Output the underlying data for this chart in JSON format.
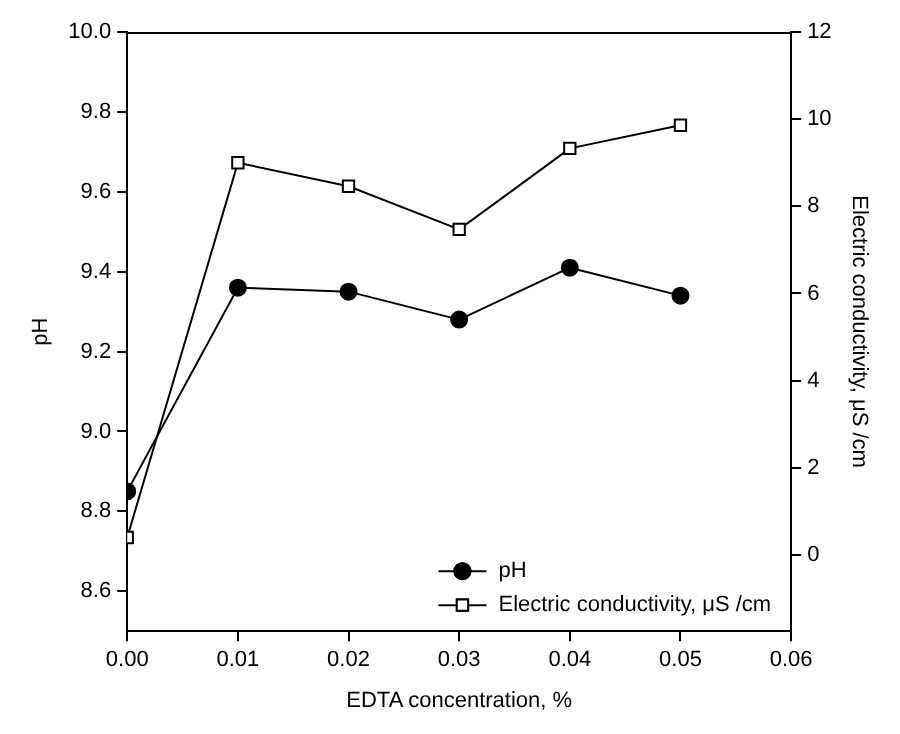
{
  "chart_data": {
    "type": "line",
    "xlabel": "EDTA concentration, %",
    "ylabel": "pH",
    "y2label": "Electric conductivity, μS /cm",
    "x": [
      0,
      0.01,
      0.02,
      0.03,
      0.04,
      0.05
    ],
    "xlim": [
      0,
      0.06
    ],
    "xticks": [
      {
        "value": 0,
        "label": "0.00"
      },
      {
        "value": 0.01,
        "label": "0.01"
      },
      {
        "value": 0.02,
        "label": "0.02"
      },
      {
        "value": 0.03,
        "label": "0.03"
      },
      {
        "value": 0.04,
        "label": "0.04"
      },
      {
        "value": 0.05,
        "label": "0.05"
      },
      {
        "value": 0.06,
        "label": "0.06"
      }
    ],
    "ylim": [
      8.5,
      10
    ],
    "yticks": [
      {
        "value": 8.6,
        "label": "8.6"
      },
      {
        "value": 8.8,
        "label": "8.8"
      },
      {
        "value": 9,
        "label": "9.0"
      },
      {
        "value": 9.2,
        "label": "9.2"
      },
      {
        "value": 9.4,
        "label": "9.4"
      },
      {
        "value": 9.6,
        "label": "9.6"
      },
      {
        "value": 9.8,
        "label": "9.8"
      },
      {
        "value": 10,
        "label": "10.0"
      }
    ],
    "y2lim": [
      -1.75,
      12
    ],
    "y2ticks": [
      0,
      2,
      4,
      6,
      8,
      10,
      12
    ],
    "series": [
      {
        "name": "pH",
        "color": "#000000",
        "marker": "circle",
        "values": [
          8.85,
          9.36,
          9.35,
          9.28,
          9.41,
          9.34
        ]
      },
      {
        "name": "Electric conductivity, μS /cm",
        "color": "#000000",
        "marker": "square",
        "axis": "y2",
        "values": [
          0.4,
          9.0,
          8.46,
          7.47,
          9.33,
          9.86
        ]
      }
    ],
    "legend": "bottom right",
    "grid": false,
    "line_style": "solid"
  }
}
